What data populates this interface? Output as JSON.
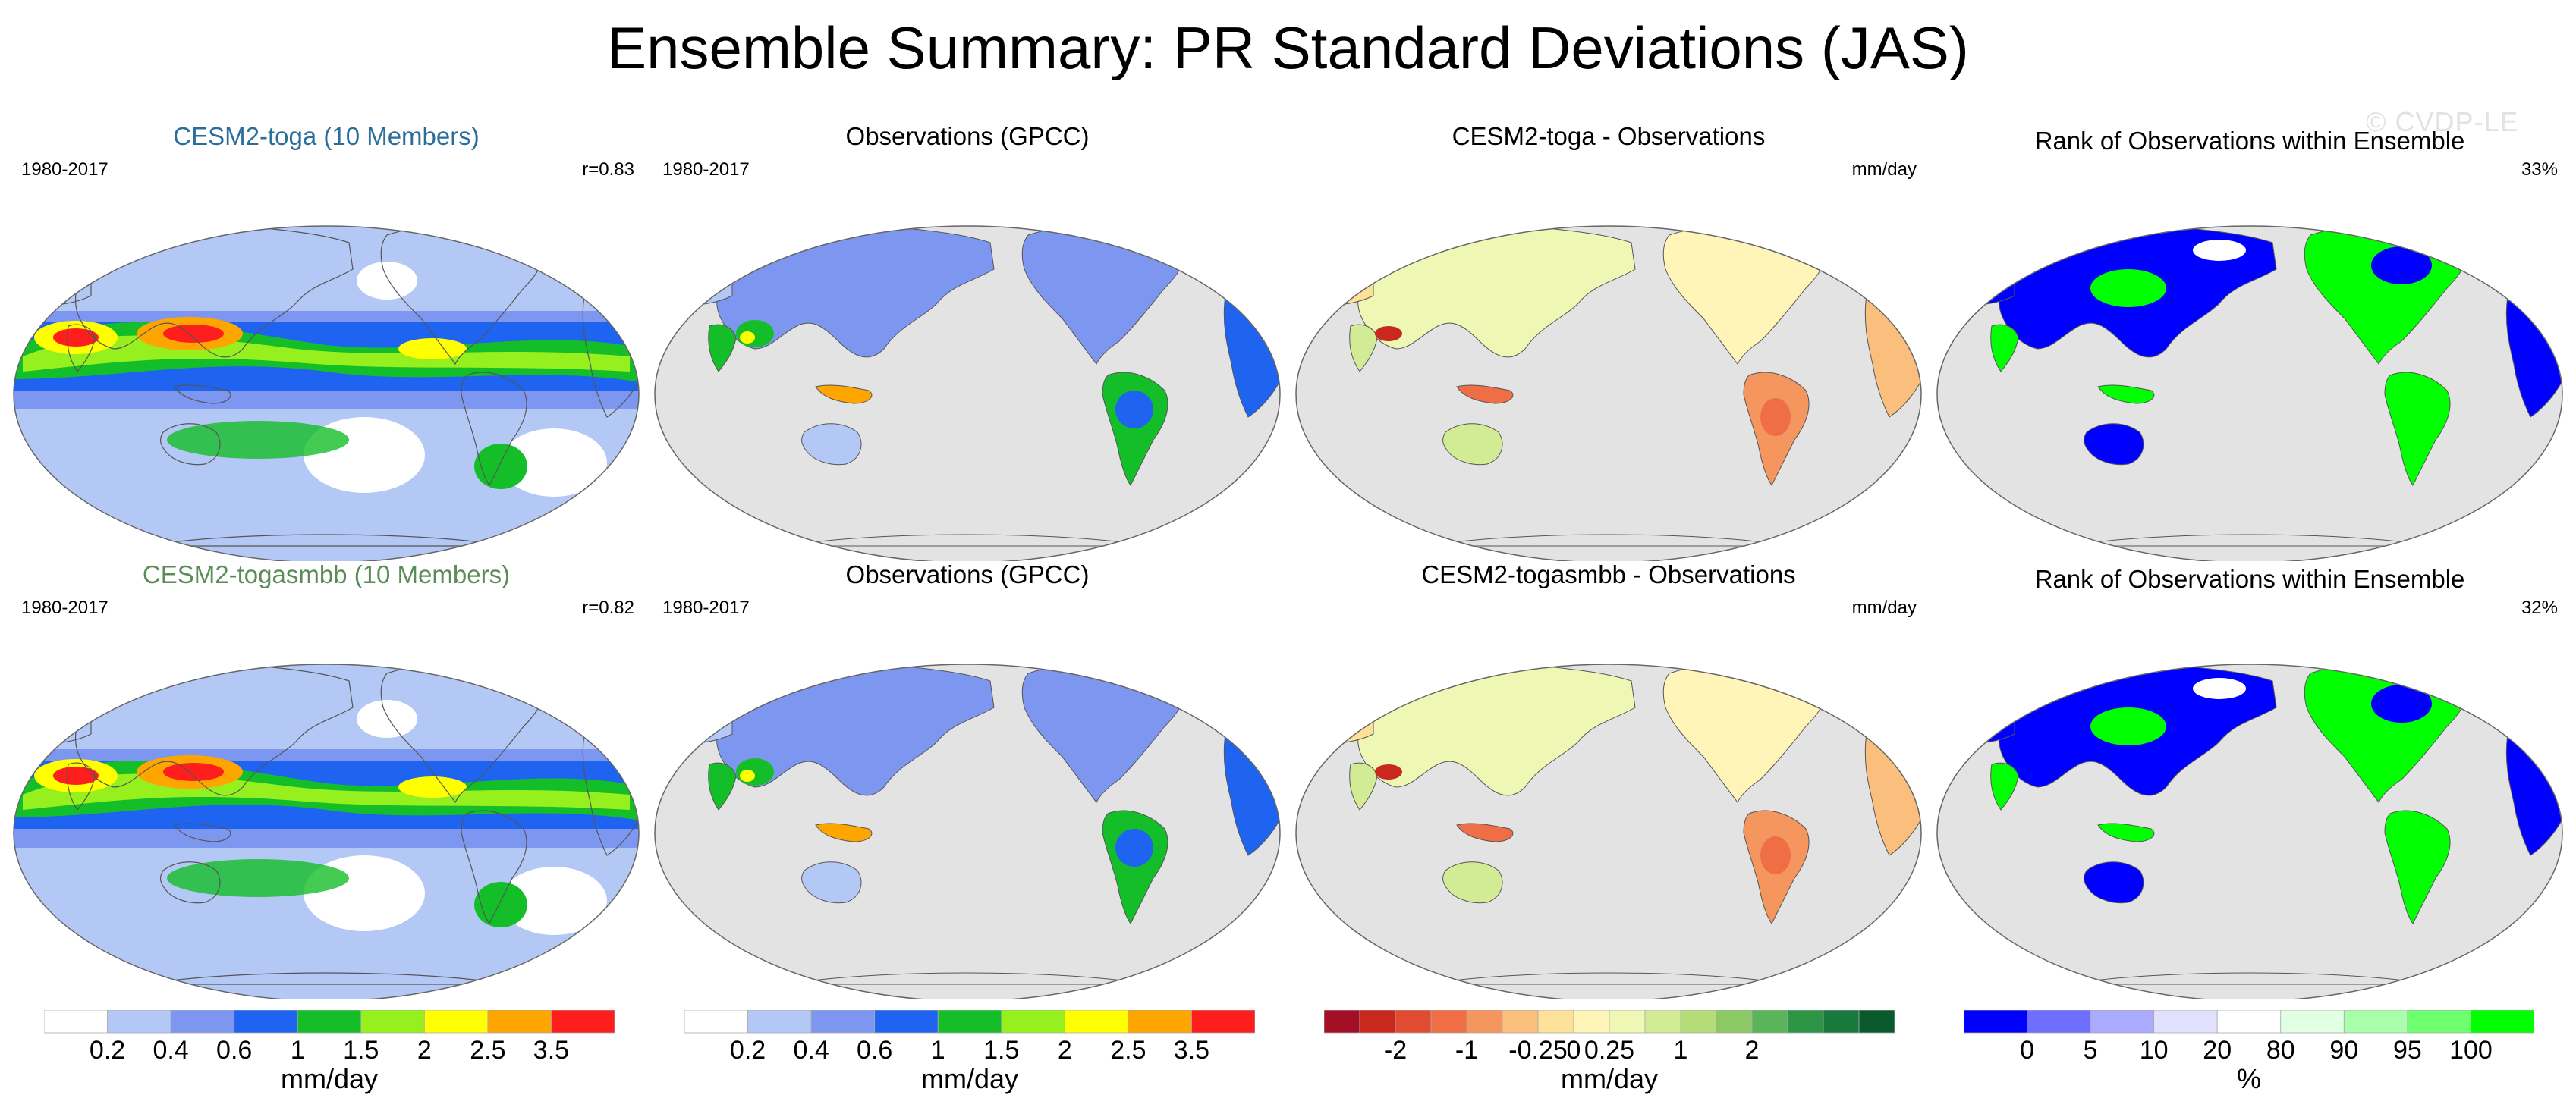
{
  "title": "Ensemble Summary: PR Standard Deviations (JAS)",
  "watermark": "© CVDP-LE",
  "colors": {
    "ocean_missing": "#e3e3e3",
    "cesm2_toga_title": "#2b6e99",
    "cesm2_togasmbb_title": "#5a8c55",
    "coastline": "#555555"
  },
  "rows": [
    {
      "panels": [
        {
          "title": "CESM2-toga (10 Members)",
          "left": "1980-2017",
          "right": "r=0.83",
          "kind": "model"
        },
        {
          "title": "Observations (GPCC)",
          "left": "1980-2017",
          "right": "",
          "kind": "obs"
        },
        {
          "title": "CESM2-toga - Observations",
          "left": "",
          "right": "mm/day",
          "kind": "diff"
        },
        {
          "title": "Rank of Observations within Ensemble",
          "left": "",
          "right": "33%",
          "kind": "rank"
        }
      ]
    },
    {
      "panels": [
        {
          "title": "CESM2-togasmbb (10 Members)",
          "left": "1980-2017",
          "right": "r=0.82",
          "kind": "model"
        },
        {
          "title": "Observations (GPCC)",
          "left": "1980-2017",
          "right": "",
          "kind": "obs"
        },
        {
          "title": "CESM2-togasmbb - Observations",
          "left": "",
          "right": "mm/day",
          "kind": "diff"
        },
        {
          "title": "Rank of Observations within Ensemble",
          "left": "",
          "right": "32%",
          "kind": "rank"
        }
      ]
    }
  ],
  "colorbars": [
    {
      "unit": "mm/day",
      "labels": [
        "0.2",
        "0.4",
        "0.6",
        "1",
        "1.5",
        "2",
        "2.5",
        "3.5"
      ],
      "colors": [
        "#ffffff",
        "#b4c8f5",
        "#7d96f0",
        "#1e64f0",
        "#14be28",
        "#96f01e",
        "#ffff00",
        "#ffa500",
        "#ff1e1e"
      ]
    },
    {
      "unit": "mm/day",
      "labels": [
        "0.2",
        "0.4",
        "0.6",
        "1",
        "1.5",
        "2",
        "2.5",
        "3.5"
      ],
      "colors": [
        "#ffffff",
        "#b4c8f5",
        "#7d96f0",
        "#1e64f0",
        "#14be28",
        "#96f01e",
        "#ffff00",
        "#ffa500",
        "#ff1e1e"
      ]
    },
    {
      "unit": "mm/day",
      "labels": [
        "-2",
        "-1",
        "-0.25",
        "0",
        "0.25",
        "1",
        "2"
      ],
      "colors": [
        "#a50f26",
        "#c8281e",
        "#e14b32",
        "#f06e46",
        "#f5965f",
        "#fabe7d",
        "#fde199",
        "#fff5b9",
        "#eef8b4",
        "#d2ec96",
        "#b4dc78",
        "#8cc864",
        "#5ab45a",
        "#2d9646",
        "#19783c",
        "#0a5a2d"
      ],
      "label_positions": [
        2,
        4,
        6,
        7,
        8,
        10,
        12
      ]
    },
    {
      "unit": "%",
      "labels": [
        "0",
        "5",
        "10",
        "20",
        "80",
        "90",
        "95",
        "100"
      ],
      "colors": [
        "#0000ff",
        "#6e6eff",
        "#aaaaff",
        "#e1e1ff",
        "#ffffff",
        "#e1ffe1",
        "#aaffaa",
        "#6eff6e",
        "#00ff00"
      ],
      "label_positions": [
        1,
        2,
        3,
        4,
        5,
        6,
        7,
        8
      ]
    }
  ]
}
